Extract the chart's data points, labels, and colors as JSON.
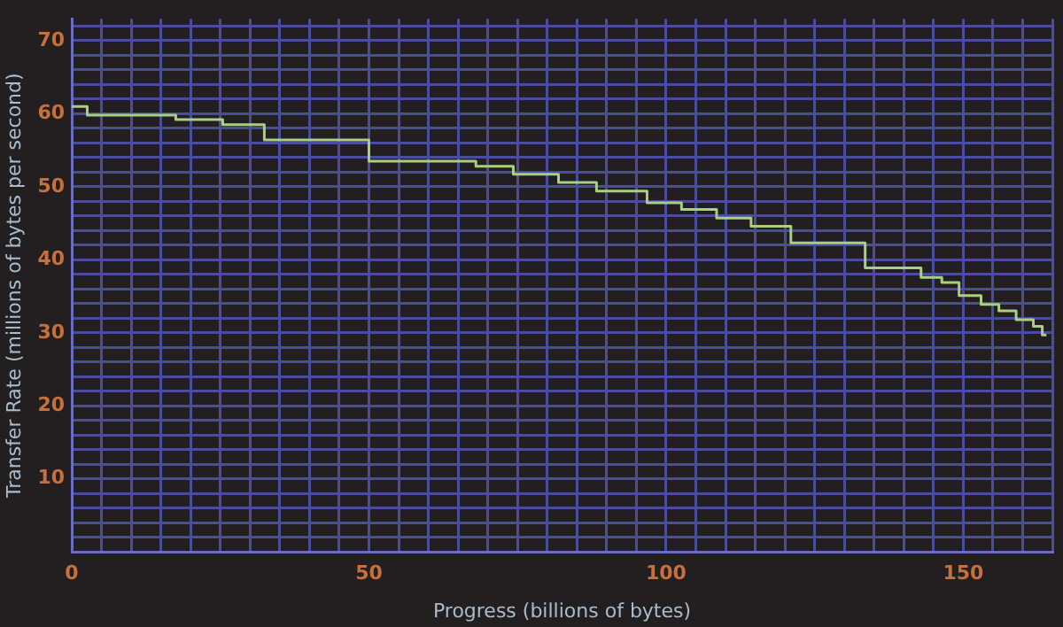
{
  "chart_data": {
    "type": "step",
    "xlabel": "Progress (billions of bytes)",
    "ylabel": "Transfer Rate (millions of bytes per second)",
    "x": [
      0,
      2.6,
      17.5,
      25.4,
      32.4,
      50,
      68,
      74.3,
      81.9,
      88.3,
      96.8,
      102.6,
      108.5,
      114.3,
      121,
      133.5,
      142.9,
      146.4,
      149.3,
      153,
      156,
      158.9,
      161.8,
      163.3,
      164
    ],
    "series": [
      {
        "color": "#a8d080",
        "values": [
          61,
          59.8,
          59.2,
          58.5,
          56.4,
          53.5,
          52.8,
          51.7,
          50.6,
          49.4,
          47.8,
          46.9,
          45.7,
          44.6,
          42.3,
          38.9,
          37.6,
          36.9,
          35.1,
          33.9,
          33.0,
          31.8,
          30.9,
          29.7,
          29.7
        ]
      }
    ],
    "xlim": [
      0,
      165
    ],
    "xticks": [
      0,
      {
        "value": 5,
        "label": null
      },
      {
        "value": 10,
        "label": null
      },
      {
        "value": 15,
        "label": null
      },
      {
        "value": 20,
        "label": null
      },
      {
        "value": 25,
        "label": null
      },
      {
        "value": 30,
        "label": null
      },
      {
        "value": 35,
        "label": null
      },
      {
        "value": 40,
        "label": null
      },
      {
        "value": 45,
        "label": null
      },
      50,
      {
        "value": 55,
        "label": null
      },
      {
        "value": 60,
        "label": null
      },
      {
        "value": 65,
        "label": null
      },
      {
        "value": 70,
        "label": null
      },
      {
        "value": 75,
        "label": null
      },
      {
        "value": 80,
        "label": null
      },
      {
        "value": 85,
        "label": null
      },
      {
        "value": 90,
        "label": null
      },
      {
        "value": 95,
        "label": null
      },
      100,
      {
        "value": 105,
        "label": null
      },
      {
        "value": 110,
        "label": null
      },
      {
        "value": 115,
        "label": null
      },
      {
        "value": 120,
        "label": null
      },
      {
        "value": 125,
        "label": null
      },
      {
        "value": 130,
        "label": null
      },
      {
        "value": 135,
        "label": null
      },
      {
        "value": 140,
        "label": null
      },
      {
        "value": 145,
        "label": null
      },
      150,
      {
        "value": 155,
        "label": null
      },
      {
        "value": 160,
        "label": null
      },
      {
        "value": 165,
        "label": null
      }
    ],
    "ylim": [
      0,
      73
    ],
    "yticks": [
      {
        "value": 0,
        "label": null
      },
      {
        "value": 2,
        "label": null
      },
      {
        "value": 4,
        "label": null
      },
      {
        "value": 6,
        "label": null
      },
      {
        "value": 8,
        "label": null
      },
      10,
      {
        "value": 12,
        "label": null
      },
      {
        "value": 14,
        "label": null
      },
      {
        "value": 16,
        "label": null
      },
      {
        "value": 18,
        "label": null
      },
      20,
      {
        "value": 22,
        "label": null
      },
      {
        "value": 24,
        "label": null
      },
      {
        "value": 26,
        "label": null
      },
      {
        "value": 28,
        "label": null
      },
      30,
      {
        "value": 32,
        "label": null
      },
      {
        "value": 34,
        "label": null
      },
      {
        "value": 36,
        "label": null
      },
      {
        "value": 38,
        "label": null
      },
      40,
      {
        "value": 42,
        "label": null
      },
      {
        "value": 44,
        "label": null
      },
      {
        "value": 46,
        "label": null
      },
      {
        "value": 48,
        "label": null
      },
      50,
      {
        "value": 52,
        "label": null
      },
      {
        "value": 54,
        "label": null
      },
      {
        "value": 56,
        "label": null
      },
      {
        "value": 58,
        "label": null
      },
      60,
      {
        "value": 62,
        "label": null
      },
      {
        "value": 64,
        "label": null
      },
      {
        "value": 66,
        "label": null
      },
      {
        "value": 68,
        "label": null
      },
      70,
      {
        "value": 72,
        "label": null
      }
    ],
    "grid": true,
    "legend": false,
    "marker": "none",
    "line_style": "solid"
  }
}
